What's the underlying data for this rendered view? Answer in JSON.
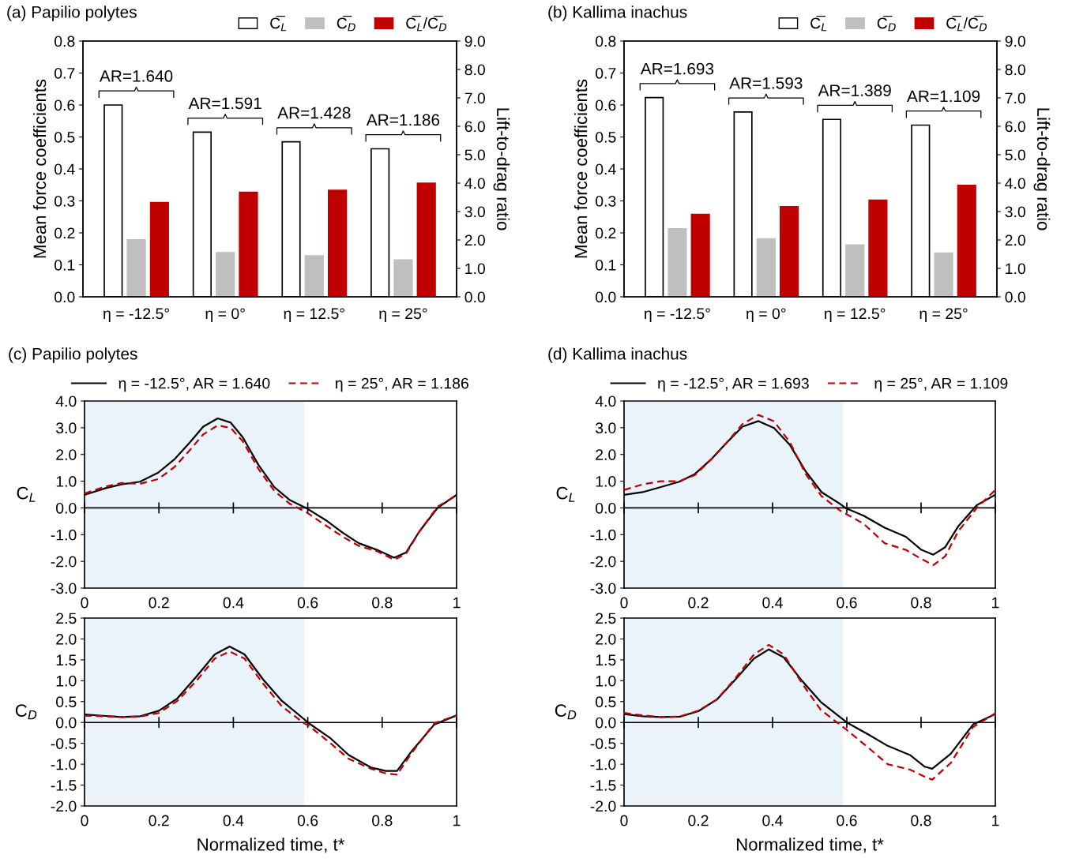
{
  "chart_data": [
    {
      "type": "bar",
      "title": "(a) Papilio polytes",
      "ylabel": "Mean force coefficients",
      "y2label": "Lift-to-drag ratio",
      "categories": [
        "η = -12.5°",
        "η = 0°",
        "η = 12.5°",
        "η = 25°"
      ],
      "ylim": [
        0,
        0.8
      ],
      "yticks": [
        {
          "value": 0,
          "label": "0.0"
        },
        0.1,
        0.2,
        0.3,
        0.4,
        0.5,
        0.6,
        0.7,
        0.8
      ],
      "y2lim": [
        0,
        9
      ],
      "y2ticks": [
        {
          "value": 0,
          "label": "0.0"
        },
        {
          "value": 1,
          "label": "1.0"
        },
        {
          "value": 2,
          "label": "2.0"
        },
        {
          "value": 3,
          "label": "3.0"
        },
        {
          "value": 4,
          "label": "4.0"
        },
        {
          "value": 5,
          "label": "5.0"
        },
        {
          "value": 6,
          "label": "6.0"
        },
        {
          "value": 7,
          "label": "7.0"
        },
        {
          "value": 8,
          "label": "8.0"
        },
        {
          "value": 9,
          "label": "9.0"
        }
      ],
      "legend": "top right",
      "grid": false,
      "annotations": [
        "AR=1.640",
        "AR=1.591",
        "AR=1.428",
        "AR=1.186"
      ],
      "series": [
        {
          "name": "C̅$_{L}$",
          "color": "#ffffff",
          "values": [
            0.6,
            0.515,
            0.485,
            0.463
          ]
        },
        {
          "name": "C̅$_{D}$",
          "color": "#bfbfbf",
          "values": [
            0.178,
            0.138,
            0.128,
            0.115
          ]
        },
        {
          "name": "C̅$_{L}$/C̅$_{D}$",
          "color": "#c00000",
          "axis": "y2",
          "values": [
            3.32,
            3.68,
            3.75,
            4.0
          ]
        }
      ]
    },
    {
      "type": "bar",
      "title": "(b) Kallima inachus",
      "ylabel": "Mean force coefficients",
      "y2label": "Lift-to-drag ratio",
      "categories": [
        "η = -12.5°",
        "η = 0°",
        "η = 12.5°",
        "η = 25°"
      ],
      "ylim": [
        0,
        0.8
      ],
      "yticks": [
        {
          "value": 0,
          "label": "0.0"
        },
        0.1,
        0.2,
        0.3,
        0.4,
        0.5,
        0.6,
        0.7,
        0.8
      ],
      "y2lim": [
        0,
        9
      ],
      "y2ticks": [
        {
          "value": 0,
          "label": "0.0"
        },
        {
          "value": 1,
          "label": "1.0"
        },
        {
          "value": 2,
          "label": "2.0"
        },
        {
          "value": 3,
          "label": "3.0"
        },
        {
          "value": 4,
          "label": "4.0"
        },
        {
          "value": 5,
          "label": "5.0"
        },
        {
          "value": 6,
          "label": "6.0"
        },
        {
          "value": 7,
          "label": "7.0"
        },
        {
          "value": 8,
          "label": "8.0"
        },
        {
          "value": 9,
          "label": "9.0"
        }
      ],
      "legend": "top right",
      "grid": false,
      "annotations": [
        "AR=1.693",
        "AR=1.593",
        "AR=1.389",
        "AR=1.109"
      ],
      "series": [
        {
          "name": "C̅$_{L}$",
          "color": "#ffffff",
          "values": [
            0.623,
            0.578,
            0.555,
            0.537
          ]
        },
        {
          "name": "C̅$_{D}$",
          "color": "#bfbfbf",
          "values": [
            0.213,
            0.181,
            0.162,
            0.137
          ]
        },
        {
          "name": "C̅$_{L}$/C̅$_{D}$",
          "color": "#c00000",
          "axis": "y2",
          "values": [
            2.9,
            3.17,
            3.4,
            3.92
          ]
        }
      ]
    },
    {
      "type": "line",
      "title": "(c) Papilio polytes",
      "ylabel": "C$_{L}$",
      "xlim": [
        0,
        1
      ],
      "xticks": [
        0,
        0.2,
        0.4,
        0.6,
        0.8,
        1
      ],
      "ylim": [
        -3,
        4
      ],
      "yticks": [
        {
          "value": -3,
          "label": "-3.0"
        },
        {
          "value": -2,
          "label": "-2.0"
        },
        {
          "value": -1,
          "label": "-1.0"
        },
        {
          "value": 0,
          "label": "0.0"
        },
        {
          "value": 1,
          "label": "1.0"
        },
        {
          "value": 2,
          "label": "2.0"
        },
        {
          "value": 3,
          "label": "3.0"
        },
        {
          "value": 4,
          "label": "4.0"
        }
      ],
      "bands": [
        {
          "axis": "x",
          "from": 0,
          "to": 0.59,
          "color": "#eaf2fa"
        }
      ],
      "ref_lines": [
        {
          "axis": "y",
          "value": 0,
          "color": "#000000"
        }
      ],
      "legend": "top",
      "grid": false,
      "series": [
        {
          "name": "η = -12.5°, AR = 1.640",
          "color": "#000000",
          "line_style": "solid",
          "x": [
            0,
            0.057,
            0.099,
            0.149,
            0.198,
            0.241,
            0.283,
            0.319,
            0.358,
            0.393,
            0.425,
            0.467,
            0.51,
            0.552,
            0.595,
            0.652,
            0.694,
            0.737,
            0.786,
            0.832,
            0.864,
            0.9,
            0.949,
            1
          ],
          "values": [
            0.49,
            0.74,
            0.88,
            0.98,
            1.32,
            1.81,
            2.45,
            3.04,
            3.35,
            3.19,
            2.65,
            1.62,
            0.78,
            0.29,
            0,
            -0.49,
            -0.93,
            -1.32,
            -1.57,
            -1.86,
            -1.67,
            -0.88,
            0,
            0.49
          ]
        },
        {
          "name": "η = 25°, AR = 1.186",
          "color": "#c00000",
          "line_style": "dashed",
          "x": [
            0,
            0.057,
            0.099,
            0.149,
            0.198,
            0.241,
            0.283,
            0.319,
            0.358,
            0.393,
            0.425,
            0.467,
            0.51,
            0.552,
            0.595,
            0.652,
            0.694,
            0.737,
            0.786,
            0.832,
            0.864,
            0.9,
            0.949,
            1
          ],
          "values": [
            0.54,
            0.8,
            0.93,
            0.9,
            1.08,
            1.52,
            2.16,
            2.75,
            3.09,
            2.99,
            2.5,
            1.47,
            0.64,
            0.15,
            -0.15,
            -0.69,
            -1.08,
            -1.42,
            -1.62,
            -1.94,
            -1.72,
            -0.88,
            0.05,
            0.47
          ]
        }
      ]
    },
    {
      "type": "line",
      "ylabel": "C$_{D}$",
      "xlabel": "Normalized time, t*",
      "xlim": [
        0,
        1
      ],
      "xticks": [
        0,
        0.2,
        0.4,
        0.6,
        0.8,
        1
      ],
      "ylim": [
        -2,
        2.5
      ],
      "yticks": [
        {
          "value": -2,
          "label": "-2.0"
        },
        {
          "value": -1.5,
          "label": "-1.5"
        },
        {
          "value": -1,
          "label": "-1.0"
        },
        {
          "value": -0.5,
          "label": "-0.5"
        },
        {
          "value": 0,
          "label": "0.0"
        },
        0.5,
        {
          "value": 1,
          "label": "1.0"
        },
        1.5,
        {
          "value": 2,
          "label": "2.0"
        },
        2.5
      ],
      "bands": [
        {
          "axis": "x",
          "from": 0,
          "to": 0.59,
          "color": "#eaf2fa"
        }
      ],
      "ref_lines": [
        {
          "axis": "y",
          "value": 0,
          "color": "#000000"
        }
      ],
      "grid": false,
      "series": [
        {
          "color": "#000000",
          "line_style": "solid",
          "x": [
            0,
            0.05,
            0.1,
            0.15,
            0.2,
            0.25,
            0.3,
            0.35,
            0.39,
            0.43,
            0.48,
            0.53,
            0.59,
            0.6,
            0.66,
            0.71,
            0.77,
            0.81,
            0.84,
            0.88,
            0.94,
            1
          ],
          "values": [
            0.19,
            0.16,
            0.13,
            0.15,
            0.28,
            0.58,
            1.09,
            1.63,
            1.82,
            1.63,
            1.03,
            0.52,
            0.08,
            0,
            -0.37,
            -0.78,
            -1.08,
            -1.16,
            -1.16,
            -0.68,
            -0.05,
            0.17
          ]
        },
        {
          "color": "#c00000",
          "line_style": "dashed",
          "x": [
            0,
            0.05,
            0.1,
            0.15,
            0.2,
            0.25,
            0.3,
            0.35,
            0.39,
            0.43,
            0.48,
            0.53,
            0.59,
            0.6,
            0.66,
            0.71,
            0.77,
            0.81,
            0.84,
            0.88,
            0.94,
            1
          ],
          "values": [
            0.16,
            0.15,
            0.13,
            0.14,
            0.23,
            0.52,
            0.99,
            1.53,
            1.7,
            1.53,
            0.93,
            0.39,
            -0.02,
            -0.06,
            -0.49,
            -0.87,
            -1.11,
            -1.22,
            -1.25,
            -0.72,
            -0.02,
            0.17
          ]
        }
      ]
    },
    {
      "type": "line",
      "title": "(d) Kallima inachus",
      "ylabel": "C$_{L}$",
      "xlim": [
        0,
        1
      ],
      "xticks": [
        0,
        0.2,
        0.4,
        0.6,
        0.8,
        1
      ],
      "ylim": [
        -3,
        4
      ],
      "yticks": [
        {
          "value": -3,
          "label": "-3.0"
        },
        {
          "value": -2,
          "label": "-2.0"
        },
        {
          "value": -1,
          "label": "-1.0"
        },
        {
          "value": 0,
          "label": "0.0"
        },
        {
          "value": 1,
          "label": "1.0"
        },
        {
          "value": 2,
          "label": "2.0"
        },
        {
          "value": 3,
          "label": "3.0"
        },
        {
          "value": 4,
          "label": "4.0"
        }
      ],
      "bands": [
        {
          "axis": "x",
          "from": 0,
          "to": 0.59,
          "color": "#eaf2fa"
        }
      ],
      "ref_lines": [
        {
          "axis": "y",
          "value": 0,
          "color": "#000000"
        }
      ],
      "legend": "top",
      "grid": false,
      "series": [
        {
          "name": "η = -12.5°, AR = 1.693",
          "color": "#000000",
          "line_style": "solid",
          "x": [
            0,
            0.05,
            0.099,
            0.149,
            0.191,
            0.234,
            0.277,
            0.319,
            0.362,
            0.404,
            0.447,
            0.489,
            0.532,
            0.582,
            0.596,
            0.645,
            0.702,
            0.759,
            0.801,
            0.833,
            0.865,
            0.9,
            0.95,
            1
          ],
          "values": [
            0.49,
            0.59,
            0.78,
            0.98,
            1.27,
            1.81,
            2.45,
            3.04,
            3.25,
            2.99,
            2.35,
            1.37,
            0.59,
            0.15,
            0,
            -0.29,
            -0.74,
            -1.08,
            -1.57,
            -1.75,
            -1.47,
            -0.69,
            0.1,
            0.49
          ]
        },
        {
          "name": "η = 25°, AR = 1.109",
          "color": "#c00000",
          "line_style": "dashed",
          "x": [
            0,
            0.05,
            0.099,
            0.149,
            0.191,
            0.234,
            0.277,
            0.319,
            0.362,
            0.404,
            0.447,
            0.489,
            0.532,
            0.582,
            0.645,
            0.702,
            0.759,
            0.801,
            0.833,
            0.865,
            0.9,
            0.95,
            1
          ],
          "values": [
            0.67,
            0.88,
            1.0,
            1.0,
            1.23,
            1.81,
            2.45,
            3.14,
            3.48,
            3.24,
            2.45,
            1.27,
            0.44,
            -0.1,
            -0.59,
            -1.32,
            -1.57,
            -1.91,
            -2.14,
            -1.81,
            -0.88,
            0,
            0.67
          ]
        }
      ]
    },
    {
      "type": "line",
      "ylabel": "C$_{D}$",
      "xlabel": "Normalized time, t*",
      "xlim": [
        0,
        1
      ],
      "xticks": [
        0,
        0.2,
        0.4,
        0.6,
        0.8,
        1
      ],
      "ylim": [
        -2,
        2.5
      ],
      "yticks": [
        {
          "value": -2,
          "label": "-2.0"
        },
        {
          "value": -1.5,
          "label": "-1.5"
        },
        {
          "value": -1,
          "label": "-1.0"
        },
        {
          "value": -0.5,
          "label": "-0.5"
        },
        {
          "value": 0,
          "label": "0.0"
        },
        0.5,
        {
          "value": 1,
          "label": "1.0"
        },
        1.5,
        {
          "value": 2,
          "label": "2.0"
        },
        2.5
      ],
      "bands": [
        {
          "axis": "x",
          "from": 0,
          "to": 0.59,
          "color": "#eaf2fa"
        }
      ],
      "ref_lines": [
        {
          "axis": "y",
          "value": 0,
          "color": "#000000"
        }
      ],
      "grid": false,
      "series": [
        {
          "color": "#000000",
          "line_style": "solid",
          "x": [
            0,
            0.05,
            0.1,
            0.15,
            0.2,
            0.25,
            0.3,
            0.35,
            0.39,
            0.43,
            0.48,
            0.53,
            0.6,
            0.66,
            0.71,
            0.77,
            0.81,
            0.83,
            0.88,
            0.94,
            1
          ],
          "values": [
            0.2,
            0.15,
            0.13,
            0.14,
            0.27,
            0.55,
            1.03,
            1.53,
            1.75,
            1.56,
            0.99,
            0.49,
            0,
            -0.3,
            -0.56,
            -0.78,
            -1.06,
            -1.11,
            -0.75,
            -0.05,
            0.2
          ]
        },
        {
          "color": "#c00000",
          "line_style": "dashed",
          "x": [
            0,
            0.05,
            0.1,
            0.15,
            0.2,
            0.25,
            0.3,
            0.35,
            0.39,
            0.43,
            0.48,
            0.53,
            0.6,
            0.66,
            0.71,
            0.77,
            0.81,
            0.83,
            0.88,
            0.94,
            1
          ],
          "values": [
            0.23,
            0.17,
            0.13,
            0.14,
            0.28,
            0.55,
            1.06,
            1.63,
            1.86,
            1.63,
            0.93,
            0.3,
            -0.18,
            -0.62,
            -1.0,
            -1.13,
            -1.3,
            -1.37,
            -0.97,
            -0.11,
            0.22
          ]
        }
      ]
    }
  ]
}
